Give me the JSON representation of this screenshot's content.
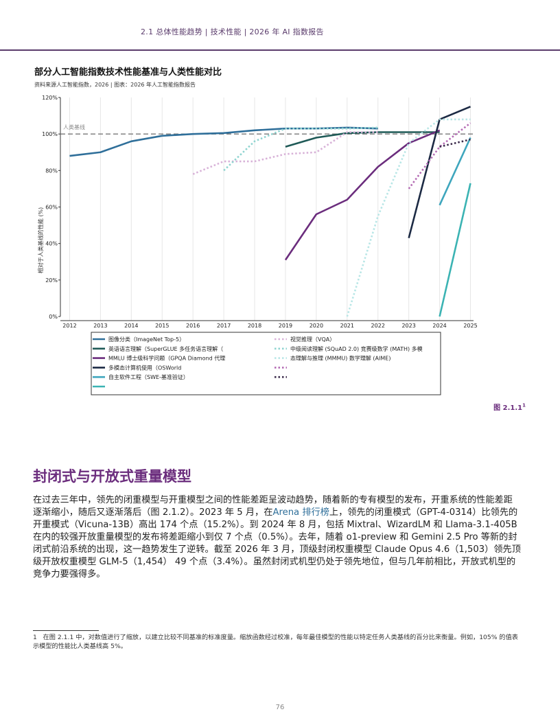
{
  "header": "2.1 总体性能趋势 | 技术性能 | 2026 年 AI 指数报告",
  "chart_data": {
    "type": "line",
    "title": "部分人工智能指数技术性能基准与人类性能对比",
    "subtitle": "资料来源人工智能指数，2026 | 图表：2026 年人工智能指数报告",
    "y_label": "相对于人类基线的性能 (%)",
    "x": [
      2012,
      2013,
      2014,
      2015,
      2016,
      2017,
      2018,
      2019,
      2020,
      2021,
      2022,
      2023,
      2024,
      2025
    ],
    "xlim": [
      2011.7,
      2025.1
    ],
    "xticks": [
      2012,
      2013,
      2014,
      2015,
      2016,
      2017,
      2018,
      2019,
      2020,
      2021,
      2022,
      2023,
      2024,
      2025
    ],
    "ylim": [
      0,
      120
    ],
    "yticks": [
      {
        "value": 0,
        "label": "0%"
      },
      {
        "value": 20,
        "label": "20%"
      },
      {
        "value": 40,
        "label": "40%"
      },
      {
        "value": 60,
        "label": "60%"
      },
      {
        "value": 80,
        "label": "80%"
      },
      {
        "value": 100,
        "label": "100%"
      },
      {
        "value": 120,
        "label": "120%"
      }
    ],
    "grid": true,
    "baseline": {
      "value": 100,
      "label": "人类基线"
    },
    "series": [
      {
        "name": "图像分类（ImageNet Top-5）",
        "color": "#2f6f9a",
        "style": "solid",
        "values": [
          88,
          90,
          96,
          99,
          100,
          100.5,
          102,
          103,
          103,
          103.5,
          103,
          null,
          null,
          null
        ]
      },
      {
        "name": "英语语言理解（SuperGLUE 多任务语言理解（",
        "color": "#1f5a57",
        "style": "solid",
        "values": [
          null,
          null,
          null,
          null,
          null,
          null,
          null,
          93,
          98,
          100.5,
          101,
          101,
          101,
          null
        ]
      },
      {
        "name": "MMLU 博士级科学问题（GPQA Diamond 代理",
        "color": "#6b2d7d",
        "style": "solid",
        "values": [
          null,
          null,
          null,
          null,
          null,
          null,
          null,
          31,
          56,
          64,
          82,
          95,
          102,
          null
        ]
      },
      {
        "name": "多模态计算机使用（OSWorld",
        "color": "#1c2a44",
        "style": "solid",
        "values": [
          null,
          null,
          null,
          null,
          null,
          null,
          null,
          null,
          null,
          null,
          null,
          43,
          108,
          115
        ]
      },
      {
        "name": "自主软件工程（SWE-基准验证）",
        "color": "#3ea6bd",
        "style": "solid",
        "values": [
          null,
          null,
          null,
          null,
          null,
          null,
          null,
          null,
          null,
          null,
          null,
          null,
          61,
          98
        ]
      },
      {
        "color": "#3bb3b3",
        "style": "solid",
        "values": [
          null,
          null,
          null,
          null,
          null,
          null,
          null,
          null,
          null,
          null,
          null,
          null,
          0,
          73
        ]
      },
      {
        "name": "视觉推理（VQA）",
        "color": "#d8b2d8",
        "style": "dotted",
        "values": [
          null,
          null,
          null,
          null,
          78,
          85,
          85,
          89,
          90,
          101,
          101,
          null,
          null,
          null
        ]
      },
      {
        "name": "中级阅读理解 (SQuAD 2.0) 竞赛级数学 (MATH) 多模",
        "color": "#8fd4d0",
        "style": "dotted",
        "values": [
          null,
          null,
          null,
          null,
          null,
          80,
          96,
          103,
          103,
          103,
          103.5,
          null,
          null,
          null
        ]
      },
      {
        "name": "态理解与推理 (MMMU) 数学理解 (AIME)",
        "color": "#b8e6e6",
        "style": "dotted",
        "values": [
          null,
          null,
          null,
          null,
          null,
          null,
          null,
          null,
          null,
          0,
          55,
          95,
          108,
          108
        ]
      },
      {
        "color": "#b46bb4",
        "style": "dotted",
        "values": [
          null,
          null,
          null,
          null,
          null,
          null,
          null,
          null,
          null,
          null,
          null,
          70,
          93,
          106
        ]
      },
      {
        "color": "#3a2a4a",
        "style": "dotted",
        "values": [
          null,
          null,
          null,
          null,
          null,
          null,
          null,
          null,
          null,
          null,
          null,
          null,
          93,
          97
        ]
      }
    ]
  },
  "figure_label": "图 2.1.1",
  "figure_note_marker": "1",
  "section_title": "封闭式与开放式重量模型",
  "paragraph": [
    "在过去三年中，领先的闭重模型与开重模型之间的性能差距呈波动趋势，随着新的专有模型的发布，开重系统的性能差距逐渐缩小，随后又逐渐落后（图 2.1.2）。2023 年 5 月，在",
    "Arena 排行榜",
    "上，领先的闭重模式（GPT-4-0314）比领先的开重模式（Vicuna-13B）高出 174 个点（15.2%）。到 2024 年 8 月，包括 Mixtral、WizardLM 和 Llama-3.1-405B 在内的较强开放重量模型的发布将差距缩小到仅 7 个点（0.5%）。去年，随着 o1-preview 和 Gemini 2.5 Pro 等新的封闭式前沿系统的出现，这一趋势发生了逆转。截至 2026 年 3 月，顶级封闭权重模型 Claude Opus 4.6（1,503）领先顶级开放权重模型 GLM-5（1,454） 49 个点（3.4%）。虽然封闭式机型仍处于领先地位，但与几年前相比，开放式机型的竞争力要强得多。"
  ],
  "footnote": {
    "marker": "1",
    "text": "在图 2.1.1 中，对数值进行了缩放，以建立比较不同基准的标准度量。缩放函数经过校准，每年最佳模型的性能以特定任务人类基线的百分比来衡量。例如，105% 的值表示模型的性能比人类基线高 5%。"
  },
  "page_number": "76"
}
